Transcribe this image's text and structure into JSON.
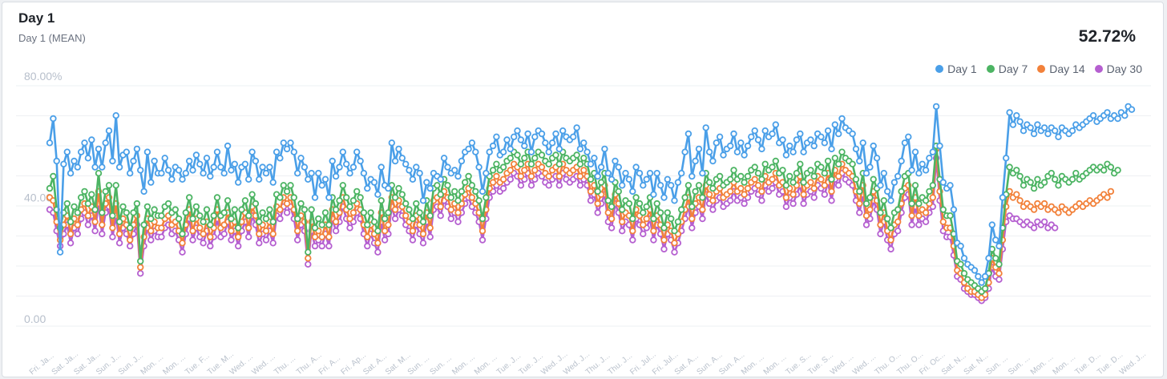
{
  "card": {
    "title": "Day 1",
    "subtitle": "Day 1 (MEAN)",
    "value": "52.72%"
  },
  "legend": [
    {
      "label": "Day 1",
      "color": "#4a9fe8"
    },
    {
      "label": "Day 7",
      "color": "#4cb463"
    },
    {
      "label": "Day 14",
      "color": "#f2813a"
    },
    {
      "label": "Day 30",
      "color": "#b55fd0"
    }
  ],
  "chart_data": {
    "type": "line",
    "ylabel_ticks": [
      "0.00",
      "40.00",
      "80.00%"
    ],
    "ylim": [
      0,
      80
    ],
    "grid": true,
    "legend_position": "top-right",
    "x_tick_labels": [
      "Fri. Ja...",
      "Sat. Ja...",
      "Sat. Ja...",
      "Sun. J...",
      "Sun. J...",
      "Mon. ...",
      "Mon. ...",
      "Tue. F...",
      "Tue. M...",
      "Wed. ...",
      "Wed. ...",
      "Thu. ...",
      "Thu. A...",
      "Fri. A...",
      "Fri. Ap...",
      "Sat. A...",
      "Sat. M...",
      "Sun. ...",
      "Sun. ...",
      "Mon. ...",
      "Mon. ...",
      "Tue. J...",
      "Tue. J...",
      "Wed. J...",
      "Wed. J...",
      "Thu. J...",
      "Thu. J...",
      "Fri. Jul...",
      "Fri. Jul...",
      "Sat. A...",
      "Sun. A...",
      "Sun. A...",
      "Mon. ...",
      "Mon. ...",
      "Tue. S...",
      "Tue. S...",
      "Wed. ...",
      "Wed. ...",
      "Thu. O...",
      "Thu. O...",
      "Fri. Oc...",
      "Sat. N...",
      "Sat. N...",
      "Sun. ...",
      "Sun. ...",
      "Mon. ...",
      "Mon. ...",
      "Tue. D...",
      "Tue. D...",
      "Wed. J..."
    ],
    "series": [
      {
        "name": "Day 1",
        "color": "#4a9fe8",
        "values": [
          58,
          66,
          52,
          22,
          51,
          55,
          48,
          52,
          50,
          55,
          58,
          53,
          59,
          50,
          56,
          50,
          58,
          62,
          52,
          67,
          50,
          54,
          55,
          48,
          52,
          56,
          49,
          42,
          55,
          45,
          52,
          48,
          48,
          53,
          49,
          46,
          50,
          49,
          46,
          48,
          52,
          49,
          54,
          51,
          48,
          53,
          47,
          50,
          55,
          50,
          48,
          57,
          49,
          51,
          45,
          50,
          51,
          46,
          55,
          52,
          46,
          50,
          48,
          50,
          45,
          55,
          53,
          58,
          56,
          58,
          55,
          48,
          53,
          50,
          46,
          48,
          40,
          48,
          44,
          46,
          40,
          52,
          47,
          50,
          55,
          51,
          48,
          50,
          55,
          52,
          48,
          43,
          46,
          45,
          41,
          50,
          44,
          43,
          58,
          52,
          56,
          53,
          51,
          49,
          46,
          50,
          48,
          39,
          45,
          43,
          48,
          47,
          46,
          53,
          50,
          48,
          49,
          47,
          52,
          55,
          56,
          58,
          55,
          50,
          42,
          48,
          55,
          57,
          60,
          54,
          55,
          59,
          56,
          60,
          62,
          59,
          57,
          61,
          55,
          60,
          62,
          61,
          58,
          55,
          58,
          61,
          56,
          62,
          60,
          59,
          60,
          63,
          56,
          58,
          55,
          51,
          53,
          47,
          50,
          56,
          48,
          46,
          52,
          50,
          44,
          48,
          46,
          42,
          50,
          48,
          44,
          46,
          48,
          41,
          48,
          44,
          40,
          46,
          44,
          39,
          45,
          48,
          55,
          61,
          47,
          52,
          56,
          48,
          63,
          55,
          52,
          58,
          60,
          54,
          56,
          57,
          61,
          55,
          58,
          54,
          57,
          60,
          62,
          59,
          56,
          62,
          60,
          61,
          64,
          58,
          59,
          54,
          57,
          55,
          59,
          61,
          55,
          58,
          59,
          57,
          61,
          60,
          58,
          62,
          56,
          64,
          61,
          66,
          63,
          62,
          61,
          56,
          52,
          58,
          48,
          50,
          57,
          53,
          44,
          48,
          42,
          39,
          45,
          47,
          52,
          58,
          60,
          49,
          55,
          48,
          51,
          49,
          53,
          55,
          70,
          57,
          45,
          43,
          44,
          36,
          25,
          24,
          20,
          18,
          17,
          16,
          14,
          12,
          14,
          20,
          31,
          26,
          24,
          40,
          53,
          68,
          64,
          67,
          65,
          62,
          64,
          63,
          61,
          64,
          62,
          63,
          61,
          63,
          62,
          60,
          63,
          62,
          61,
          62,
          64,
          63,
          64,
          65,
          66,
          67,
          65,
          66,
          67,
          68,
          66,
          67,
          66,
          68,
          67,
          70,
          69
        ]
      },
      {
        "name": "Day 7",
        "color": "#4cb463",
        "values": [
          43,
          47,
          36,
          30,
          35,
          38,
          32,
          37,
          35,
          40,
          42,
          38,
          41,
          36,
          48,
          35,
          42,
          44,
          34,
          44,
          32,
          37,
          35,
          30,
          35,
          38,
          19,
          31,
          37,
          33,
          36,
          34,
          34,
          37,
          38,
          35,
          36,
          33,
          28,
          35,
          40,
          33,
          37,
          34,
          32,
          36,
          31,
          34,
          40,
          34,
          35,
          39,
          33,
          36,
          30,
          36,
          39,
          34,
          41,
          38,
          32,
          35,
          33,
          36,
          32,
          41,
          40,
          44,
          42,
          44,
          40,
          33,
          38,
          36,
          22,
          36,
          30,
          33,
          31,
          35,
          31,
          40,
          36,
          39,
          44,
          40,
          37,
          39,
          42,
          40,
          35,
          31,
          35,
          32,
          29,
          39,
          33,
          35,
          44,
          40,
          43,
          41,
          38,
          36,
          33,
          38,
          35,
          32,
          39,
          34,
          43,
          44,
          41,
          46,
          44,
          40,
          42,
          39,
          42,
          45,
          47,
          44,
          42,
          39,
          33,
          40,
          47,
          49,
          51,
          49,
          50,
          52,
          53,
          55,
          54,
          51,
          53,
          55,
          51,
          53,
          55,
          54,
          52,
          51,
          53,
          54,
          51,
          55,
          53,
          52,
          53,
          54,
          51,
          53,
          51,
          46,
          48,
          42,
          45,
          48,
          39,
          37,
          45,
          42,
          36,
          39,
          38,
          33,
          40,
          38,
          35,
          37,
          40,
          33,
          38,
          35,
          30,
          35,
          33,
          29,
          32,
          36,
          40,
          44,
          37,
          42,
          44,
          40,
          48,
          45,
          43,
          46,
          47,
          44,
          45,
          46,
          49,
          46,
          47,
          45,
          47,
          49,
          50,
          48,
          46,
          51,
          49,
          50,
          52,
          48,
          49,
          44,
          47,
          45,
          48,
          51,
          45,
          48,
          49,
          47,
          51,
          50,
          48,
          52,
          46,
          53,
          51,
          55,
          53,
          52,
          51,
          46,
          42,
          48,
          38,
          40,
          46,
          43,
          35,
          39,
          33,
          30,
          35,
          36,
          42,
          47,
          48,
          38,
          44,
          38,
          40,
          39,
          42,
          44,
          57,
          46,
          36,
          34,
          34,
          28,
          19,
          18,
          15,
          13,
          12,
          11,
          10,
          9,
          10,
          15,
          23,
          20,
          18,
          30,
          41,
          50,
          48,
          49,
          47,
          44,
          46,
          45,
          43,
          46,
          44,
          45,
          47,
          48,
          46,
          44,
          47,
          46,
          45,
          46,
          48,
          46,
          47,
          48,
          49,
          50,
          49,
          50,
          49,
          51,
          50,
          48,
          49
        ]
      },
      {
        "name": "Day 14",
        "color": "#f2813a",
        "values": [
          40,
          39,
          32,
          26,
          31,
          34,
          28,
          33,
          31,
          36,
          38,
          34,
          37,
          32,
          42,
          31,
          38,
          40,
          30,
          38,
          28,
          33,
          31,
          26,
          31,
          34,
          17,
          27,
          33,
          29,
          32,
          30,
          30,
          33,
          34,
          31,
          32,
          29,
          25,
          31,
          36,
          29,
          33,
          30,
          28,
          32,
          27,
          30,
          36,
          30,
          31,
          35,
          29,
          32,
          27,
          32,
          35,
          30,
          37,
          34,
          28,
          31,
          29,
          32,
          28,
          37,
          36,
          40,
          38,
          40,
          36,
          29,
          34,
          32,
          20,
          32,
          27,
          29,
          27,
          31,
          27,
          36,
          32,
          35,
          40,
          36,
          33,
          35,
          38,
          36,
          31,
          27,
          31,
          28,
          25,
          35,
          29,
          31,
          40,
          36,
          39,
          37,
          34,
          32,
          29,
          34,
          31,
          28,
          35,
          30,
          39,
          40,
          37,
          42,
          40,
          36,
          38,
          35,
          38,
          41,
          43,
          40,
          38,
          35,
          29,
          36,
          43,
          45,
          47,
          45,
          46,
          48,
          49,
          51,
          50,
          47,
          49,
          51,
          47,
          49,
          51,
          50,
          48,
          47,
          49,
          50,
          47,
          51,
          49,
          48,
          49,
          50,
          47,
          49,
          47,
          42,
          44,
          38,
          41,
          44,
          35,
          33,
          41,
          38,
          32,
          35,
          34,
          29,
          36,
          34,
          31,
          33,
          36,
          29,
          34,
          31,
          26,
          31,
          29,
          25,
          28,
          32,
          36,
          40,
          33,
          38,
          40,
          36,
          44,
          41,
          39,
          42,
          43,
          40,
          41,
          42,
          45,
          42,
          43,
          41,
          43,
          45,
          46,
          44,
          42,
          47,
          45,
          46,
          48,
          44,
          45,
          40,
          43,
          41,
          44,
          47,
          41,
          44,
          45,
          43,
          47,
          46,
          44,
          48,
          42,
          49,
          47,
          51,
          49,
          48,
          47,
          42,
          38,
          44,
          34,
          36,
          42,
          39,
          31,
          35,
          29,
          26,
          31,
          32,
          38,
          43,
          44,
          34,
          40,
          34,
          36,
          35,
          38,
          40,
          56,
          42,
          32,
          30,
          30,
          24,
          16,
          15,
          12,
          10,
          9,
          9,
          8,
          7,
          8,
          12,
          20,
          17,
          15,
          26,
          37,
          42,
          40,
          41,
          39,
          37,
          38,
          37,
          36,
          38,
          37,
          38,
          36,
          37,
          36,
          35,
          37,
          36,
          35,
          36,
          37,
          38,
          37,
          38,
          39,
          38,
          39,
          40,
          41,
          40,
          42
        ]
      },
      {
        "name": "Day 30",
        "color": "#b55fd0",
        "values": [
          36,
          35,
          29,
          24,
          28,
          31,
          25,
          30,
          28,
          33,
          35,
          31,
          34,
          29,
          38,
          28,
          35,
          37,
          27,
          34,
          25,
          30,
          28,
          24,
          28,
          31,
          15,
          24,
          30,
          26,
          29,
          27,
          27,
          30,
          31,
          28,
          29,
          26,
          22,
          28,
          33,
          26,
          30,
          27,
          25,
          29,
          24,
          27,
          33,
          27,
          28,
          32,
          26,
          29,
          24,
          29,
          32,
          27,
          34,
          31,
          25,
          28,
          26,
          29,
          25,
          34,
          33,
          37,
          35,
          37,
          33,
          26,
          31,
          29,
          18,
          29,
          24,
          26,
          24,
          28,
          24,
          33,
          29,
          32,
          37,
          33,
          30,
          32,
          35,
          33,
          28,
          24,
          28,
          25,
          22,
          32,
          26,
          28,
          37,
          33,
          36,
          34,
          31,
          29,
          26,
          31,
          28,
          25,
          32,
          27,
          36,
          37,
          34,
          39,
          37,
          33,
          35,
          32,
          35,
          38,
          40,
          37,
          35,
          32,
          26,
          33,
          40,
          42,
          44,
          42,
          43,
          45,
          46,
          48,
          47,
          44,
          46,
          48,
          44,
          46,
          48,
          47,
          45,
          44,
          46,
          47,
          44,
          48,
          46,
          45,
          46,
          47,
          44,
          46,
          44,
          39,
          41,
          35,
          38,
          41,
          32,
          30,
          38,
          35,
          29,
          32,
          31,
          26,
          33,
          31,
          28,
          30,
          33,
          26,
          31,
          28,
          23,
          28,
          26,
          22,
          25,
          29,
          33,
          37,
          30,
          35,
          37,
          33,
          41,
          38,
          36,
          39,
          40,
          37,
          38,
          39,
          42,
          39,
          40,
          38,
          40,
          42,
          43,
          41,
          39,
          44,
          42,
          43,
          45,
          41,
          42,
          37,
          40,
          38,
          41,
          44,
          38,
          41,
          42,
          40,
          44,
          43,
          41,
          45,
          39,
          46,
          44,
          48,
          46,
          45,
          44,
          39,
          35,
          41,
          31,
          33,
          39,
          36,
          28,
          32,
          26,
          23,
          28,
          29,
          35,
          40,
          41,
          31,
          37,
          31,
          33,
          32,
          35,
          37,
          53,
          39,
          29,
          27,
          27,
          21,
          14,
          13,
          10,
          9,
          8,
          8,
          7,
          6,
          7,
          10,
          17,
          14,
          13,
          23,
          32,
          34,
          33,
          33,
          32,
          31,
          32,
          31,
          30,
          32,
          31,
          32,
          30,
          31,
          30
        ]
      }
    ]
  }
}
